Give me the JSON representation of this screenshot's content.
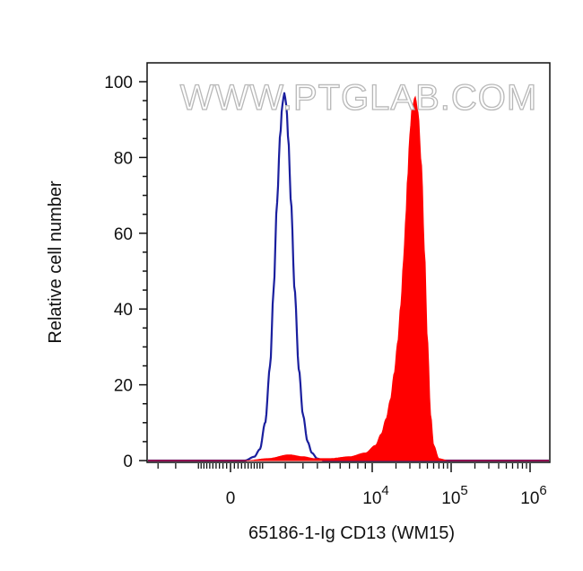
{
  "chart_data": {
    "type": "area",
    "title": "",
    "xlabel": "65186-1-Ig CD13 (WM15)",
    "ylabel": "Relative cell number",
    "watermark": "WWW.PTGLAB.COM",
    "x_scale": "biexponential",
    "ylim": [
      0,
      100
    ],
    "y_ticks": [
      {
        "value": 0,
        "label": "0"
      },
      {
        "value": 20,
        "label": "20"
      },
      {
        "value": 40,
        "label": "40"
      },
      {
        "value": 60,
        "label": "60"
      },
      {
        "value": 80,
        "label": "80"
      },
      {
        "value": 100,
        "label": "100"
      }
    ],
    "x_ticks": [
      {
        "value": 0,
        "base": "0",
        "exp": ""
      },
      {
        "value": 10000,
        "base": "10",
        "exp": "4"
      },
      {
        "value": 100000,
        "base": "10",
        "exp": "5"
      },
      {
        "value": 1000000,
        "base": "10",
        "exp": "6"
      }
    ],
    "grid": false,
    "legend": "none",
    "series": [
      {
        "kind": "outline",
        "color": "#1a1f9e",
        "x": [
          0,
          400,
          700,
          900,
          1100,
          1300,
          1450,
          1600,
          1750,
          1850,
          1950,
          2050,
          2150,
          2300,
          2500,
          2750,
          3000,
          3300,
          3600,
          4000,
          4500,
          5200,
          6000,
          7000
        ],
        "y": [
          0,
          0,
          1,
          3,
          10,
          25,
          45,
          68,
          86,
          94,
          97,
          94,
          85,
          68,
          45,
          24,
          12,
          5,
          2,
          0.5,
          0,
          0,
          0,
          0
        ]
      },
      {
        "kind": "filled",
        "color": "#ff0000",
        "x": [
          500,
          1200,
          2200,
          3000,
          3800,
          5000,
          7000,
          9000,
          11000,
          13000,
          15000,
          17000,
          19000,
          21000,
          23000,
          25000,
          26500,
          28000,
          30000,
          32000,
          35000,
          38000,
          42000,
          46000,
          50000,
          55000,
          60000,
          70000,
          90000
        ],
        "y": [
          0,
          0.5,
          1.5,
          1,
          0.5,
          0.5,
          1,
          2,
          4,
          7,
          11,
          16,
          23,
          31,
          41,
          53,
          63,
          74,
          86,
          93,
          96,
          92,
          78,
          55,
          32,
          12,
          4,
          0.5,
          0
        ]
      }
    ]
  }
}
